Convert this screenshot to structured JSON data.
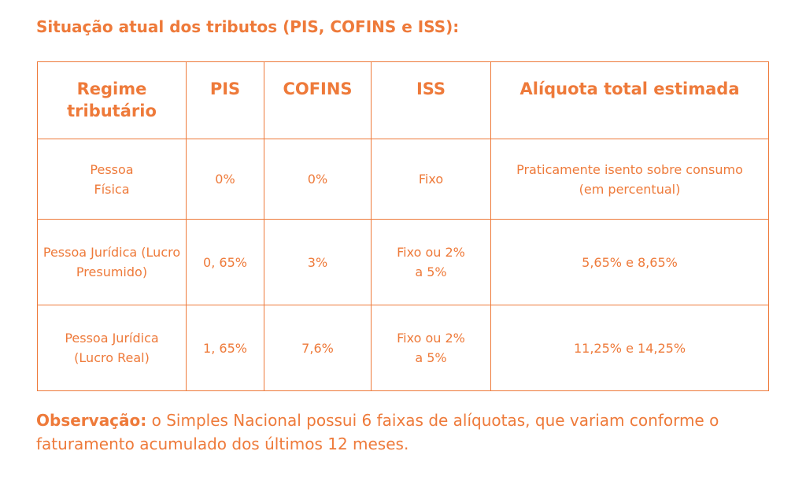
{
  "title": "Situação atual dos tributos (PIS, COFINS e ISS):",
  "table": {
    "headers": [
      "Regime tributário",
      "PIS",
      "COFINS",
      "ISS",
      "Alíquota total estimada"
    ],
    "rows": [
      {
        "regime": "Pessoa Física",
        "pis": "0%",
        "cofins": "0%",
        "iss": "Fixo",
        "total": "Praticamente isento sobre consumo (em percentual)"
      },
      {
        "regime": "Pessoa Jurídica (Lucro Presumido)",
        "pis": "0, 65%",
        "cofins": "3%",
        "iss": "Fixo ou 2% a 5%",
        "total": "5,65% e 8,65%"
      },
      {
        "regime": "Pessoa Jurídica (Lucro Real)",
        "pis": "1, 65%",
        "cofins": "7,6%",
        "iss": "Fixo ou 2% a 5%",
        "total": "11,25% e 14,25%"
      }
    ]
  },
  "note": {
    "label": "Observação:",
    "text": " o Simples Nacional possui 6 faixas de alíquotas, que variam conforme o faturamento acumulado dos últimos 12 meses."
  },
  "colors": {
    "accent": "#EE7A3A",
    "background": "#FFFFFF"
  }
}
